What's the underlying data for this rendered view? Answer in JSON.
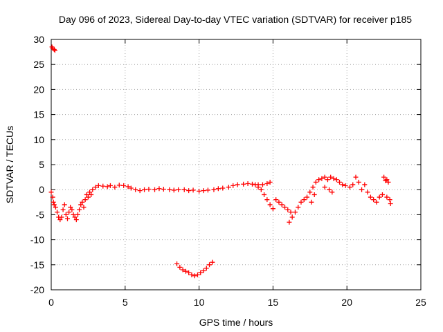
{
  "chart_data": {
    "type": "scatter",
    "title": "Day 096 of 2023, Sidereal Day-to-day VTEC variation (SDTVAR) for receiver p185",
    "xlabel": "GPS time / hours",
    "ylabel": "SDTVAR / TECUs",
    "xlim": [
      0,
      25
    ],
    "ylim": [
      -20,
      30
    ],
    "x_ticks": [
      0,
      5,
      10,
      15,
      20,
      25
    ],
    "y_ticks": [
      30,
      25,
      20,
      15,
      10,
      5,
      0,
      -5,
      -10,
      -15,
      -20
    ],
    "grid": true,
    "marker": "plus",
    "color": "#ff0000",
    "series": [
      {
        "name": "SDTVAR",
        "points": [
          [
            0.05,
            28.5
          ],
          [
            0.1,
            28.2
          ],
          [
            0.2,
            28.0
          ],
          [
            0.25,
            27.8
          ],
          [
            0.0,
            -0.5
          ],
          [
            0.1,
            -1.5
          ],
          [
            0.15,
            -2.5
          ],
          [
            0.2,
            -3.0
          ],
          [
            0.3,
            -3.5
          ],
          [
            0.4,
            -4.5
          ],
          [
            0.5,
            -5.5
          ],
          [
            0.6,
            -6.0
          ],
          [
            0.7,
            -5.5
          ],
          [
            0.8,
            -4.0
          ],
          [
            0.9,
            -3.0
          ],
          [
            1.0,
            -5.0
          ],
          [
            1.1,
            -5.8
          ],
          [
            1.2,
            -4.5
          ],
          [
            1.3,
            -3.5
          ],
          [
            1.4,
            -4.0
          ],
          [
            1.5,
            -5.0
          ],
          [
            1.6,
            -5.5
          ],
          [
            1.7,
            -6.0
          ],
          [
            1.8,
            -5.0
          ],
          [
            1.9,
            -4.0
          ],
          [
            2.0,
            -3.0
          ],
          [
            2.1,
            -2.5
          ],
          [
            2.2,
            -3.5
          ],
          [
            2.3,
            -2.0
          ],
          [
            2.4,
            -1.0
          ],
          [
            2.5,
            -1.5
          ],
          [
            2.6,
            -0.5
          ],
          [
            2.7,
            -1.0
          ],
          [
            2.8,
            0.0
          ],
          [
            3.0,
            0.5
          ],
          [
            3.2,
            0.8
          ],
          [
            3.5,
            0.7
          ],
          [
            3.8,
            0.6
          ],
          [
            4.0,
            0.8
          ],
          [
            4.3,
            0.5
          ],
          [
            4.6,
            0.9
          ],
          [
            4.9,
            0.8
          ],
          [
            5.2,
            0.6
          ],
          [
            5.4,
            0.3
          ],
          [
            5.7,
            0.0
          ],
          [
            6.0,
            -0.2
          ],
          [
            6.3,
            0.0
          ],
          [
            6.6,
            0.1
          ],
          [
            7.0,
            0.0
          ],
          [
            7.3,
            0.2
          ],
          [
            7.6,
            0.1
          ],
          [
            8.0,
            0.0
          ],
          [
            8.3,
            -0.1
          ],
          [
            8.6,
            0.0
          ],
          [
            9.0,
            0.0
          ],
          [
            9.3,
            -0.2
          ],
          [
            9.6,
            -0.1
          ],
          [
            10.0,
            -0.3
          ],
          [
            10.3,
            -0.2
          ],
          [
            10.6,
            -0.1
          ],
          [
            11.0,
            0.0
          ],
          [
            11.3,
            0.2
          ],
          [
            11.6,
            0.3
          ],
          [
            12.0,
            0.5
          ],
          [
            12.3,
            0.8
          ],
          [
            12.6,
            1.0
          ],
          [
            13.0,
            1.1
          ],
          [
            13.3,
            1.2
          ],
          [
            13.6,
            1.1
          ],
          [
            14.0,
            1.0
          ],
          [
            14.3,
            1.0
          ],
          [
            14.6,
            1.2
          ],
          [
            14.8,
            1.5
          ],
          [
            13.8,
            1.0
          ],
          [
            14.0,
            0.5
          ],
          [
            14.2,
            0.0
          ],
          [
            14.4,
            -1.0
          ],
          [
            14.6,
            -2.0
          ],
          [
            14.8,
            -3.0
          ],
          [
            15.0,
            -3.8
          ],
          [
            15.2,
            -2.0
          ],
          [
            15.4,
            -2.5
          ],
          [
            15.6,
            -3.0
          ],
          [
            15.8,
            -3.5
          ],
          [
            16.0,
            -4.0
          ],
          [
            16.2,
            -4.5
          ],
          [
            16.1,
            -6.5
          ],
          [
            16.3,
            -5.5
          ],
          [
            16.5,
            -4.5
          ],
          [
            16.7,
            -3.5
          ],
          [
            16.9,
            -2.5
          ],
          [
            17.1,
            -2.0
          ],
          [
            17.3,
            -1.5
          ],
          [
            17.5,
            -0.5
          ],
          [
            17.7,
            0.5
          ],
          [
            17.9,
            1.5
          ],
          [
            18.1,
            2.0
          ],
          [
            17.6,
            -2.5
          ],
          [
            17.8,
            -1.0
          ],
          [
            18.3,
            2.2
          ],
          [
            18.5,
            2.5
          ],
          [
            18.7,
            2.0
          ],
          [
            18.9,
            2.5
          ],
          [
            19.1,
            2.2
          ],
          [
            19.3,
            2.0
          ],
          [
            19.5,
            1.5
          ],
          [
            19.7,
            1.0
          ],
          [
            19.9,
            0.8
          ],
          [
            18.5,
            0.5
          ],
          [
            18.8,
            0.0
          ],
          [
            19.0,
            -0.5
          ],
          [
            20.2,
            0.5
          ],
          [
            20.4,
            1.0
          ],
          [
            20.6,
            2.5
          ],
          [
            20.8,
            1.5
          ],
          [
            21.0,
            0.0
          ],
          [
            21.2,
            1.0
          ],
          [
            21.4,
            -0.5
          ],
          [
            21.6,
            -1.5
          ],
          [
            21.8,
            -2.0
          ],
          [
            22.0,
            -2.5
          ],
          [
            22.2,
            -1.5
          ],
          [
            22.4,
            -1.0
          ],
          [
            22.5,
            2.5
          ],
          [
            22.6,
            1.8
          ],
          [
            22.7,
            2.0
          ],
          [
            22.8,
            1.5
          ],
          [
            22.9,
            -2.0
          ],
          [
            22.95,
            -2.8
          ],
          [
            22.7,
            -1.5
          ],
          [
            8.5,
            -14.8
          ],
          [
            8.7,
            -15.5
          ],
          [
            8.9,
            -16.0
          ],
          [
            9.1,
            -16.3
          ],
          [
            9.3,
            -16.6
          ],
          [
            9.5,
            -17.0
          ],
          [
            9.7,
            -17.2
          ],
          [
            9.9,
            -17.0
          ],
          [
            10.1,
            -16.6
          ],
          [
            10.3,
            -16.2
          ],
          [
            10.5,
            -15.7
          ],
          [
            10.7,
            -15.0
          ],
          [
            10.9,
            -14.5
          ]
        ]
      }
    ]
  }
}
